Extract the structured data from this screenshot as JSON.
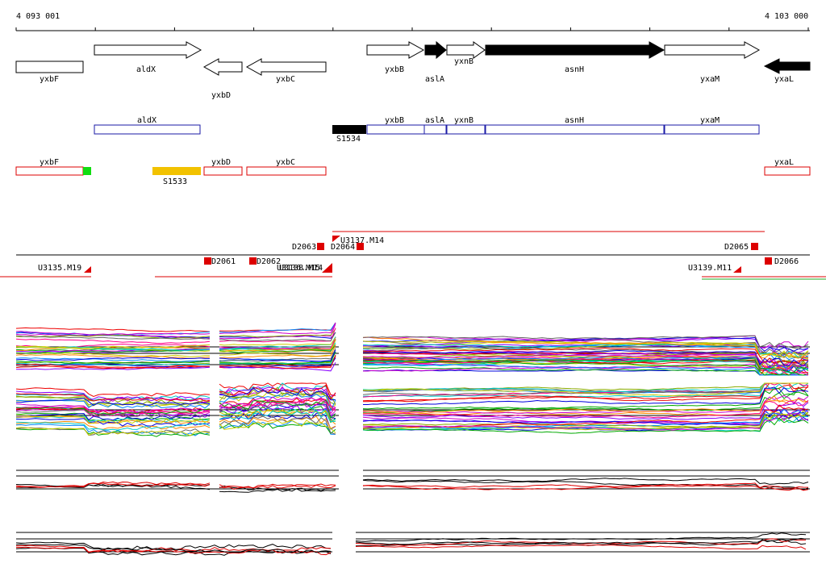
{
  "axis": {
    "start": "4 093 001",
    "end": "4 103 000"
  },
  "gene_track": {
    "genes": [
      "yxbF",
      "aldX",
      "yxbD",
      "yxbC",
      "yxbB",
      "aslA",
      "yxnB",
      "asnH",
      "yxaM",
      "yxaL"
    ]
  },
  "operon_track": {
    "labels": [
      "aldX",
      "S1534",
      "yxbB",
      "aslA",
      "yxnB",
      "asnH",
      "yxaM"
    ]
  },
  "feature_track": {
    "labels": [
      "yxbF",
      "S1533",
      "yxbD",
      "yxbC",
      "yxaL"
    ]
  },
  "site_track": {
    "labels": [
      "U3135.M19",
      "D2061",
      "D2062",
      "U3136.M15",
      "U3138.M14",
      "D2063",
      "D2064",
      "U3137.M14",
      "D2065",
      "U3139.M11",
      "D2066"
    ]
  }
}
